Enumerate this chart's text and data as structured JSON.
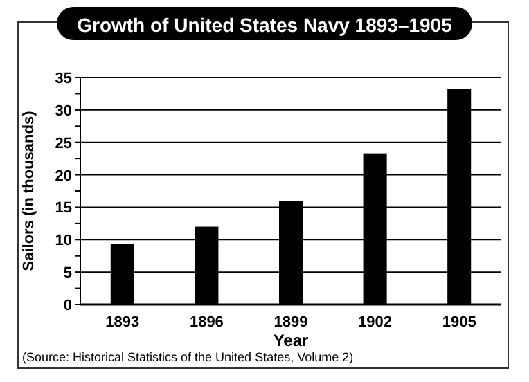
{
  "chart_data": {
    "type": "bar",
    "title": "Growth of United States Navy  1893–1905",
    "xlabel": "Year",
    "ylabel": "Sailors (in thousands)",
    "categories": [
      "1893",
      "1896",
      "1899",
      "1902",
      "1905"
    ],
    "values": [
      9.3,
      12.0,
      16.0,
      23.3,
      33.2
    ],
    "color": "#000000",
    "ylim": [
      0,
      35
    ],
    "yticks": [
      0,
      {
        "value": 2.5,
        "label": null
      },
      5,
      {
        "value": 7.5,
        "label": null
      },
      10,
      {
        "value": 12.5,
        "label": null
      },
      15,
      {
        "value": 17.5,
        "label": null
      },
      20,
      {
        "value": 22.5,
        "label": null
      },
      25,
      {
        "value": 27.5,
        "label": null
      },
      30,
      {
        "value": 32.5,
        "label": null
      },
      35
    ],
    "grid": "y",
    "annotations": [
      "(Source:  Historical Statistics of the United States, Volume 2)"
    ]
  }
}
